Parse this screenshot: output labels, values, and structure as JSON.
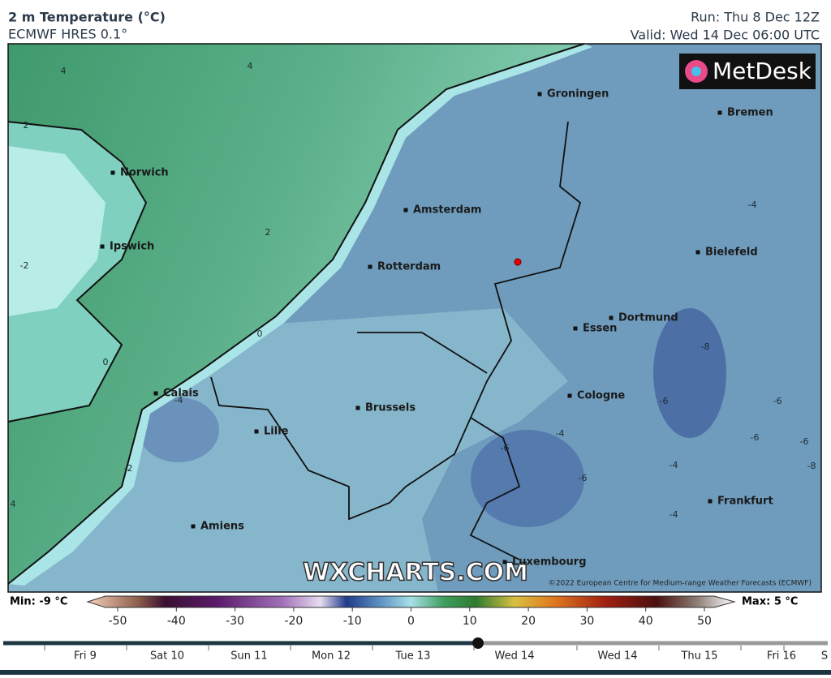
{
  "header": {
    "title": "2 m Temperature (°C)",
    "subtitle": "ECMWF HRES 0.1°",
    "run": "Run: Thu 8 Dec 12Z",
    "valid": "Valid: Wed 14 Dec 06:00 UTC"
  },
  "map": {
    "logo": "MetDesk",
    "watermark": "WXCHARTS.COM",
    "attribution": "©2022 European Centre for Medium-range Weather Forecasts (ECMWF)",
    "cities": [
      "Groningen",
      "Bremen",
      "Norwich",
      "Amsterdam",
      "Ipswich",
      "Bielefeld",
      "Rotterdam",
      "Dortmund",
      "Essen",
      "Cologne",
      "Calais",
      "Brussels",
      "Lille",
      "Frankfurt",
      "Amiens",
      "Luxembourg"
    ],
    "contour_labels": [
      4,
      4,
      2,
      2,
      -2,
      0,
      0,
      -4,
      -2,
      4,
      -4,
      -8,
      -6,
      -6,
      -6,
      -4,
      -6,
      -6,
      -6,
      -8,
      -4,
      -4
    ]
  },
  "colorbar": {
    "min_label": "Min: -9 °C",
    "max_label": "Max: 5 °C",
    "ticks": [
      -50,
      -40,
      -30,
      -20,
      -10,
      0,
      10,
      20,
      30,
      40,
      50
    ]
  },
  "timeline": {
    "days": [
      "Fri 9",
      "Sat 10",
      "Sun 11",
      "Mon 12",
      "Tue 13",
      "Wed 14",
      "Wed 14",
      "Thu 15",
      "Fri 16",
      "S"
    ]
  }
}
